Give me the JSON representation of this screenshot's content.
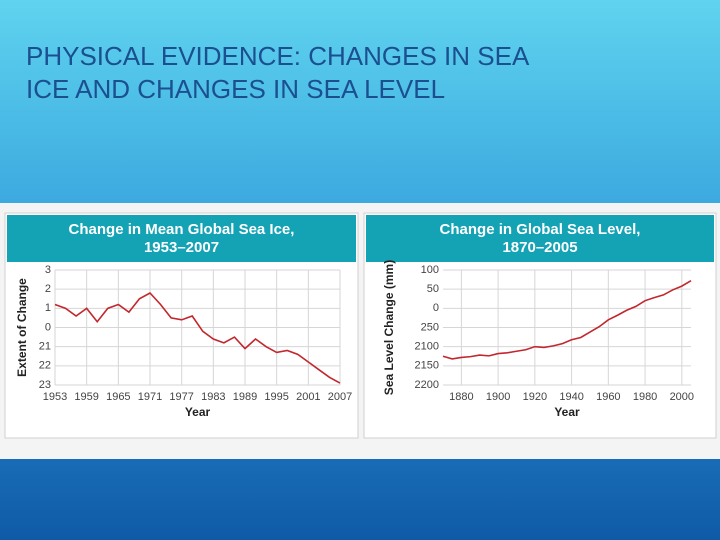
{
  "title": "PHYSICAL EVIDENCE: CHANGES IN SEA ICE AND CHANGES IN SEA LEVEL",
  "chart_data": [
    {
      "type": "line",
      "title": [
        "Change in Mean Global Sea Ice,",
        "1953–2007"
      ],
      "x_label": "Year",
      "y_label": "Extent of Change",
      "x": [
        1953,
        1955,
        1957,
        1959,
        1961,
        1963,
        1965,
        1967,
        1969,
        1971,
        1973,
        1975,
        1977,
        1979,
        1981,
        1983,
        1985,
        1987,
        1989,
        1991,
        1993,
        1995,
        1997,
        1999,
        2001,
        2003,
        2005,
        2007
      ],
      "series": [
        {
          "name": "Sea ice",
          "color": "#c2272d",
          "values": [
            1.2,
            1.0,
            0.6,
            1.0,
            0.3,
            1.0,
            1.2,
            0.8,
            1.5,
            1.8,
            1.2,
            0.5,
            0.4,
            0.6,
            -0.2,
            -0.6,
            -0.8,
            -0.5,
            -1.1,
            -0.6,
            -1.0,
            -1.3,
            -1.2,
            -1.4,
            -1.8,
            -2.2,
            -2.6,
            -2.9
          ]
        }
      ],
      "xlim": [
        1953,
        2007
      ],
      "xticks": [
        1953,
        1959,
        1965,
        1971,
        1977,
        1983,
        1989,
        1995,
        2001,
        2007
      ],
      "ylim": [
        -3,
        3
      ],
      "yticks": [
        3,
        2,
        1,
        0,
        {
          "value": -1,
          "label": "21"
        },
        {
          "value": -2,
          "label": "22"
        },
        {
          "value": -3,
          "label": "23"
        }
      ],
      "grid": true
    },
    {
      "type": "line",
      "title": [
        "Change in Global Sea Level,",
        "1870–2005"
      ],
      "x_label": "Year",
      "y_label": "Sea Level Change (mm)",
      "x": [
        1870,
        1875,
        1880,
        1885,
        1890,
        1895,
        1900,
        1905,
        1910,
        1915,
        1920,
        1925,
        1930,
        1935,
        1940,
        1945,
        1950,
        1955,
        1960,
        1965,
        1970,
        1975,
        1980,
        1985,
        1990,
        1995,
        2000,
        2005
      ],
      "series": [
        {
          "name": "Sea level",
          "color": "#c2272d",
          "values": [
            -125,
            -132,
            -128,
            -126,
            -122,
            -124,
            -118,
            -116,
            -112,
            -108,
            -100,
            -102,
            -98,
            -92,
            -82,
            -76,
            -62,
            -48,
            -30,
            -18,
            -5,
            5,
            20,
            28,
            35,
            48,
            58,
            72
          ]
        }
      ],
      "xlim": [
        1870,
        2005
      ],
      "xticks": [
        1880,
        1900,
        1920,
        1940,
        1960,
        1980,
        2000
      ],
      "ylim": [
        -200,
        100
      ],
      "yticks": [
        100,
        50,
        0,
        {
          "value": -50,
          "label": "250"
        },
        {
          "value": -100,
          "label": "2100"
        },
        {
          "value": -150,
          "label": "2150"
        },
        {
          "value": -200,
          "label": "2200"
        }
      ],
      "grid": true
    }
  ]
}
